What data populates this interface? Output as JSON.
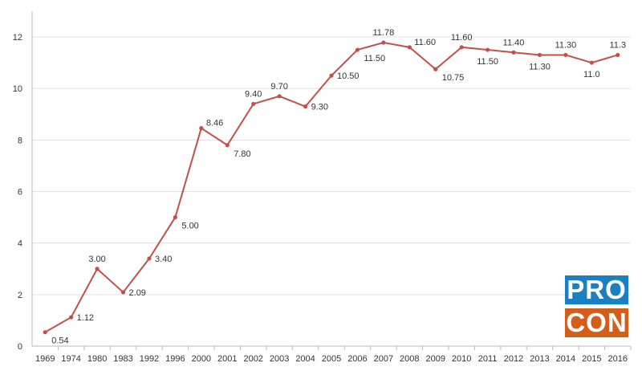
{
  "chart_data": {
    "type": "line",
    "title": "",
    "xlabel": "",
    "ylabel": "",
    "categories": [
      "1969",
      "1974",
      "1980",
      "1983",
      "1992",
      "1996",
      "2000",
      "2001",
      "2002",
      "2003",
      "2004",
      "2005",
      "2006",
      "2007",
      "2008",
      "2009",
      "2010",
      "2011",
      "2012",
      "2013",
      "2014",
      "2015",
      "2016"
    ],
    "values": [
      0.54,
      1.12,
      3.0,
      2.09,
      3.4,
      5.0,
      8.46,
      7.8,
      9.4,
      9.7,
      9.3,
      10.5,
      11.5,
      11.78,
      11.6,
      10.75,
      11.6,
      11.5,
      11.4,
      11.3,
      11.3,
      11.0,
      11.3
    ],
    "data_labels": [
      "0.54",
      "1.12",
      "3.00",
      "2.09",
      "3.40",
      "5.00",
      "8.46",
      "7.80",
      "9.40",
      "9.70",
      "9.30",
      "10.50",
      "11.50",
      "11.78",
      "11.60",
      "10.75",
      "11.60",
      "11.50",
      "11.40",
      "11.30",
      "11.30",
      "11.0",
      "11.3"
    ],
    "ylim": [
      0,
      12
    ],
    "yticks": [
      "0",
      "2",
      "4",
      "6",
      "8",
      "10",
      "12"
    ],
    "grid": true,
    "line_color": "#c0504d"
  },
  "logo": {
    "top": "PRO",
    "bottom": "CON",
    "top_color": "#1b7fc3",
    "bottom_color": "#d35d1a"
  }
}
